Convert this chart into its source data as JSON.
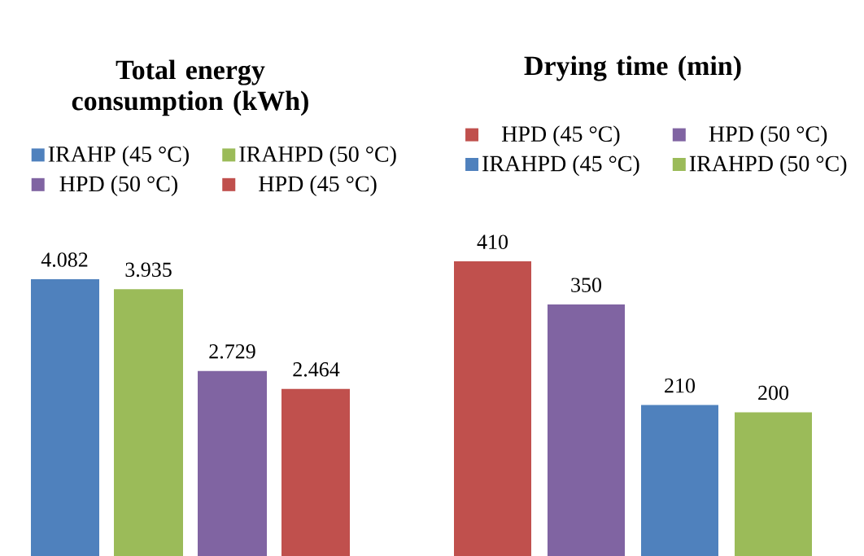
{
  "chart_data": [
    {
      "type": "bar",
      "title": "Total energy consumption (kWh)",
      "categories": [
        null
      ],
      "data_labels": true,
      "legend": "top",
      "series": [
        {
          "name": "IRAHP (45 °C)",
          "color": "#4f81bd",
          "values": [
            4.082
          ]
        },
        {
          "name": "IRAHPD (50 °C)",
          "color": "#9bbb59",
          "values": [
            3.935
          ]
        },
        {
          "name": "HPD (50 °C)",
          "color": "#8064a2",
          "values": [
            2.729
          ]
        },
        {
          "name": "HPD (45 °C)",
          "color": "#c0504d",
          "values": [
            2.464
          ]
        }
      ]
    },
    {
      "type": "bar",
      "title": "Drying time (min)",
      "categories": [
        null
      ],
      "data_labels": true,
      "legend": "top",
      "series": [
        {
          "name": "HPD (45 °C)",
          "color": "#c0504d",
          "values": [
            410
          ]
        },
        {
          "name": "HPD (50 °C)",
          "color": "#8064a2",
          "values": [
            350
          ]
        },
        {
          "name": "IRAHPD (45 °C)",
          "color": "#4f81bd",
          "values": [
            210
          ]
        },
        {
          "name": "IRAHPD (50 °C)",
          "color": "#9bbb59",
          "values": [
            200
          ]
        }
      ]
    }
  ]
}
